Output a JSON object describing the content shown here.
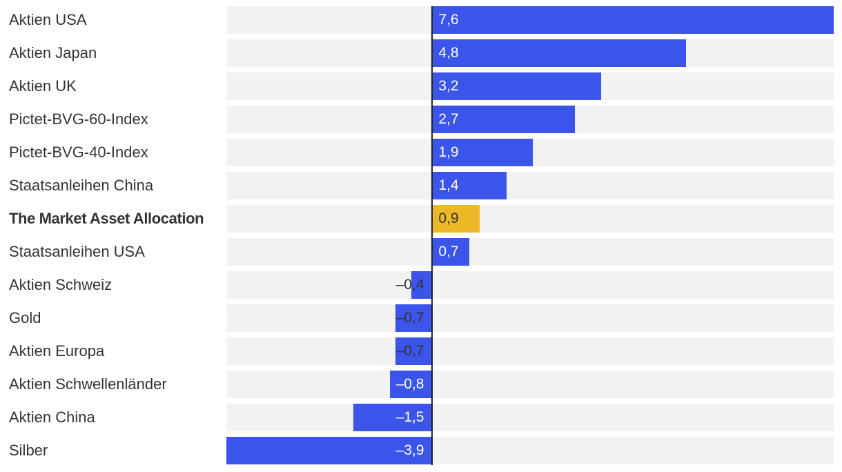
{
  "colors": {
    "bar": "#3b55ea",
    "highlight": "#ebb926",
    "row_background": "#f2f2f2",
    "zero_line": "#222222",
    "label_inside": "#ffffff",
    "label_inside_highlight": "#333333",
    "label_outside": "#333333"
  },
  "chart_data": {
    "type": "bar",
    "orientation": "horizontal",
    "title": "",
    "xlabel": "",
    "ylabel": "",
    "xlim": [
      -3.9,
      7.6
    ],
    "grid": false,
    "legend": "none",
    "categories": [
      "Aktien USA",
      "Aktien Japan",
      "Aktien UK",
      "Pictet-BVG-60-Index",
      "Pictet-BVG-40-Index",
      "Staatsanleihen China",
      "The Market Asset Allocation",
      "Staatsanleihen USA",
      "Aktien Schweiz",
      "Gold",
      "Aktien Europa",
      "Aktien Schwellenländer",
      "Aktien China",
      "Silber"
    ],
    "values": [
      7.6,
      4.8,
      3.2,
      2.7,
      1.9,
      1.4,
      0.9,
      0.7,
      -0.4,
      -0.7,
      -0.7,
      -0.8,
      -1.5,
      -3.9
    ],
    "value_labels": [
      "7,6",
      "4,8",
      "3,2",
      "2,7",
      "1,9",
      "1,4",
      "0,9",
      "0,7",
      "–0,4",
      "–0,7",
      "–0,7",
      "–0,8",
      "–1,5",
      "–3,9"
    ],
    "highlight": [
      "The Market Asset Allocation"
    ]
  }
}
